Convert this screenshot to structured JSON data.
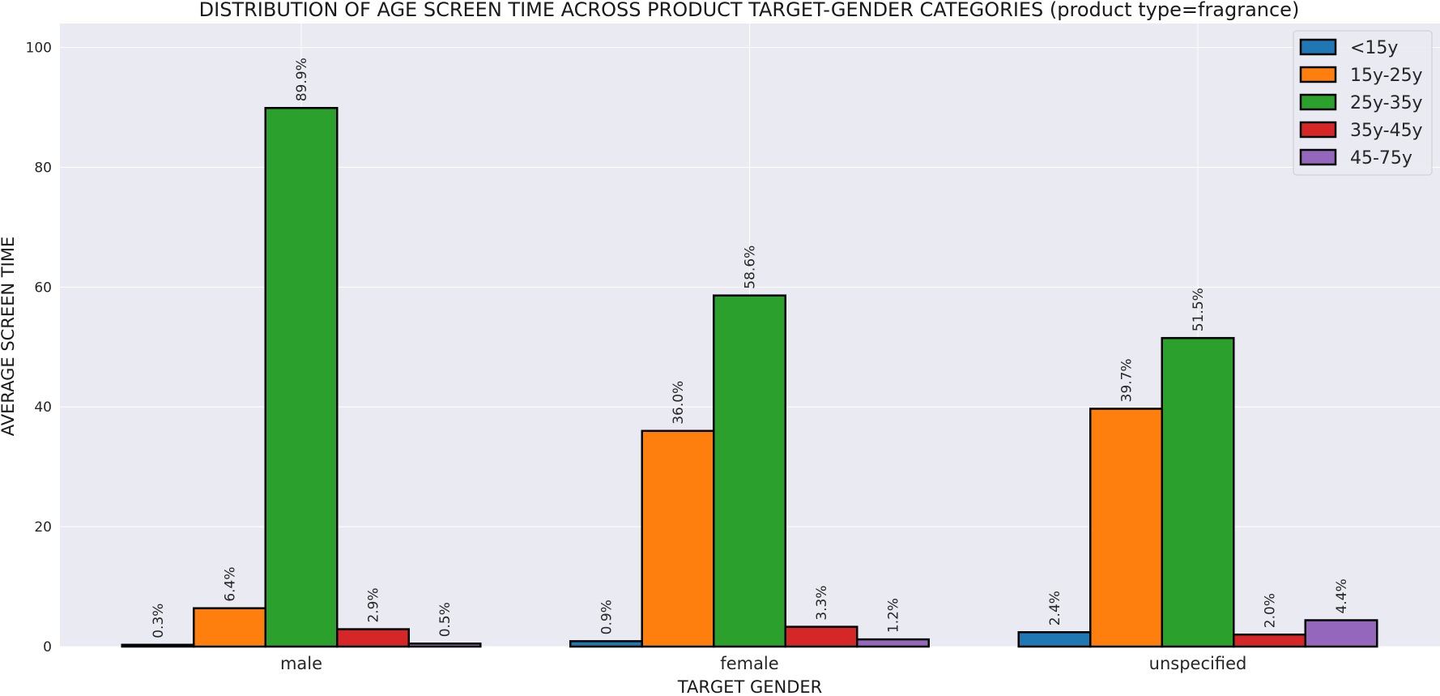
{
  "chart_data": {
    "type": "bar",
    "title": "DISTRIBUTION OF AGE SCREEN TIME ACROSS PRODUCT TARGET-GENDER CATEGORIES (product type=fragrance)",
    "xlabel": "TARGET GENDER",
    "ylabel": "AVERAGE SCREEN TIME",
    "categories": [
      "male",
      "female",
      "unspecified"
    ],
    "ylim": [
      0,
      104
    ],
    "yticks": [
      0,
      20,
      40,
      60,
      80,
      100
    ],
    "grid": true,
    "legend_position": "top-right",
    "series": [
      {
        "name": "<15y",
        "color": "#1f77b4",
        "values": [
          0.3,
          0.9,
          2.4
        ],
        "labels": [
          "0.3%",
          "0.9%",
          "2.4%"
        ]
      },
      {
        "name": "15y-25y",
        "color": "#ff7f0e",
        "values": [
          6.4,
          36.0,
          39.7
        ],
        "labels": [
          "6.4%",
          "36.0%",
          "39.7%"
        ]
      },
      {
        "name": "25y-35y",
        "color": "#2ca02c",
        "values": [
          89.9,
          58.6,
          51.5
        ],
        "labels": [
          "89.9%",
          "58.6%",
          "51.5%"
        ]
      },
      {
        "name": "35y-45y",
        "color": "#d62728",
        "values": [
          2.9,
          3.3,
          2.0
        ],
        "labels": [
          "2.9%",
          "3.3%",
          "2.0%"
        ]
      },
      {
        "name": "45-75y",
        "color": "#9467bd",
        "values": [
          0.5,
          1.2,
          4.4
        ],
        "labels": [
          "0.5%",
          "1.2%",
          "4.4%"
        ]
      }
    ]
  },
  "colors": {
    "plot_background": "#eaeaf2",
    "grid": "#ffffff",
    "bar_edge": "#000000"
  }
}
